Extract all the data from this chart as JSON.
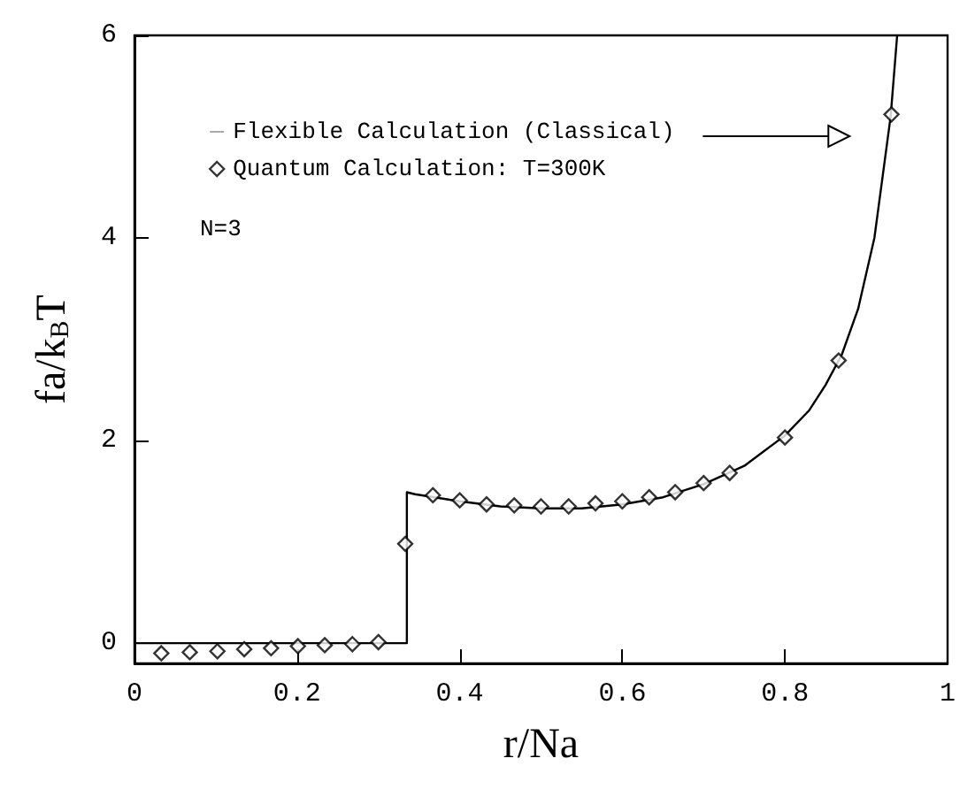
{
  "chart_data": {
    "type": "scatter",
    "xlabel": "r/Na",
    "ylabel": "fa/k$_{B}$T",
    "xlim": [
      0,
      1
    ],
    "xticks": [
      0,
      0.2,
      0.4,
      0.6,
      0.8,
      1
    ],
    "ylim": [
      -0.2,
      6
    ],
    "yticks": [
      0,
      2,
      4,
      6
    ],
    "grid": false,
    "legend": "top left",
    "annotations": [
      "N=3"
    ],
    "series": [
      {
        "type": "line",
        "name": "Flexible Calculation (Classical)",
        "color": "#000000",
        "marker": "none",
        "line_style": "solid",
        "x": [
          0,
          0.335,
          0.335,
          0.345,
          0.4,
          0.45,
          0.5,
          0.55,
          0.6,
          0.65,
          0.7,
          0.75,
          0.8,
          0.83,
          0.85,
          0.87,
          0.89,
          0.91,
          0.93,
          0.938
        ],
        "values": [
          0,
          0,
          1.49,
          1.47,
          1.4,
          1.35,
          1.33,
          1.33,
          1.37,
          1.44,
          1.57,
          1.75,
          2.05,
          2.3,
          2.55,
          2.85,
          3.3,
          4.0,
          5.2,
          6.0
        ]
      },
      {
        "name": "Quantum Calculation: T=300K",
        "color": "#000000",
        "marker": "diamond",
        "x": [
          0.033,
          0.068,
          0.102,
          0.135,
          0.168,
          0.201,
          0.234,
          0.268,
          0.3,
          0.333,
          0.367,
          0.4,
          0.433,
          0.467,
          0.5,
          0.534,
          0.567,
          0.6,
          0.633,
          0.665,
          0.7,
          0.732,
          0.8,
          0.866,
          0.931
        ],
        "values": [
          -0.1,
          -0.09,
          -0.08,
          -0.06,
          -0.05,
          -0.03,
          -0.02,
          -0.01,
          0.01,
          0.98,
          1.46,
          1.41,
          1.37,
          1.36,
          1.35,
          1.35,
          1.38,
          1.4,
          1.44,
          1.49,
          1.58,
          1.68,
          2.03,
          2.79,
          5.22
        ]
      }
    ]
  }
}
